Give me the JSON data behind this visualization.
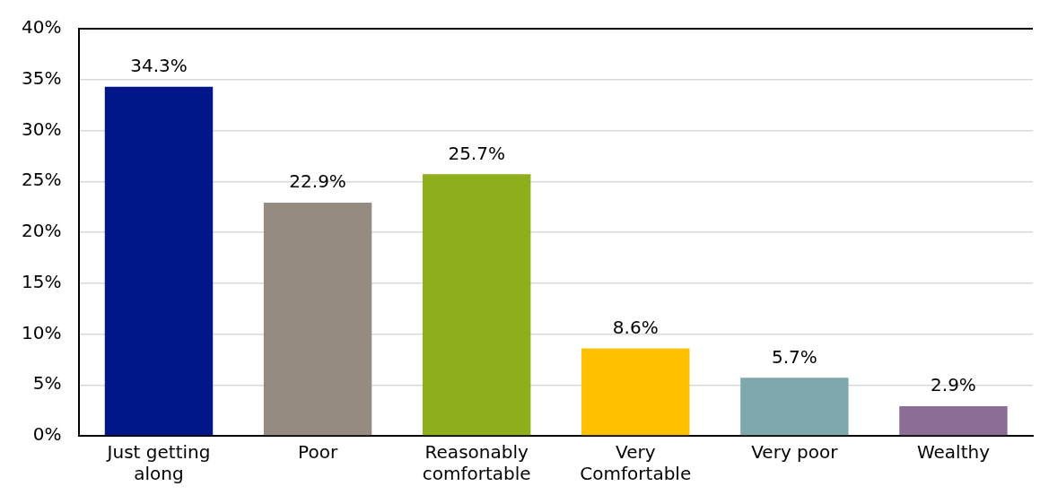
{
  "chart_data": {
    "type": "bar",
    "categories": [
      "Just getting along",
      "Poor",
      "Reasonably comfortable",
      "Very Comfortable",
      "Very poor",
      "Wealthy"
    ],
    "values": [
      34.3,
      22.9,
      25.7,
      8.6,
      5.7,
      2.9
    ],
    "colors": [
      "#001689",
      "#968b80",
      "#8fae1b",
      "#ffc000",
      "#7fa8ad",
      "#8c6d96"
    ],
    "value_labels": [
      "34.3%",
      "22.9%",
      "25.7%",
      "8.6%",
      "5.7%",
      "2.9%"
    ],
    "ylim": [
      0,
      40
    ],
    "yticks": [
      {
        "value": 0,
        "label": "0%"
      },
      {
        "value": 5,
        "label": "5%"
      },
      {
        "value": 10,
        "label": "10%"
      },
      {
        "value": 15,
        "label": "15%"
      },
      {
        "value": 20,
        "label": "20%"
      },
      {
        "value": 25,
        "label": "25%"
      },
      {
        "value": 30,
        "label": "30%"
      },
      {
        "value": 35,
        "label": "35%"
      },
      {
        "value": 40,
        "label": "40%"
      }
    ],
    "grid": "y"
  }
}
